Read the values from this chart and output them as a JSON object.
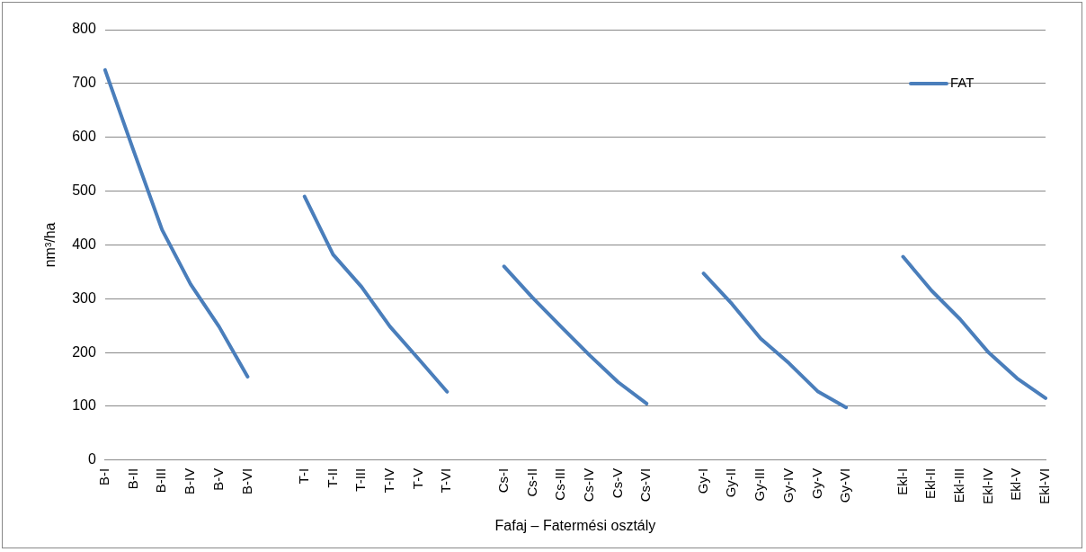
{
  "chart_data": {
    "type": "line",
    "xlabel": "Fafaj – Fatermési osztály",
    "ylabel": "nm³/ha",
    "categories": [
      "B-I",
      "B-II",
      "B-III",
      "B-IV",
      "B-V",
      "B-VI",
      null,
      "T-I",
      "T-II",
      "T-III",
      "T-IV",
      "T-V",
      "T-VI",
      null,
      "Cs-I",
      "Cs-II",
      "Cs-III",
      "Cs-IV",
      "Cs-V",
      "Cs-VI",
      null,
      "Gy-I",
      "Gy-II",
      "Gy-III",
      "Gy-IV",
      "Gy-V",
      "Gy-VI",
      null,
      "Ekl-I",
      "Ekl-II",
      "Ekl-III",
      "Ekl-IV",
      "Ekl-V",
      "Ekl-VI"
    ],
    "series": [
      {
        "name": "FAT",
        "color": "#4a7ebb",
        "values": [
          725,
          575,
          428,
          327,
          248,
          155,
          null,
          490,
          382,
          322,
          248,
          188,
          127,
          null,
          360,
          302,
          248,
          195,
          145,
          105,
          null,
          347,
          290,
          226,
          180,
          128,
          98,
          null,
          378,
          315,
          262,
          200,
          152,
          115
        ]
      }
    ],
    "ylim": [
      0,
      800
    ],
    "yticks": [
      0,
      100,
      200,
      300,
      400,
      500,
      600,
      700,
      800
    ],
    "grid": "y",
    "legend": "top right",
    "marker": "none",
    "line_style": "solid"
  }
}
